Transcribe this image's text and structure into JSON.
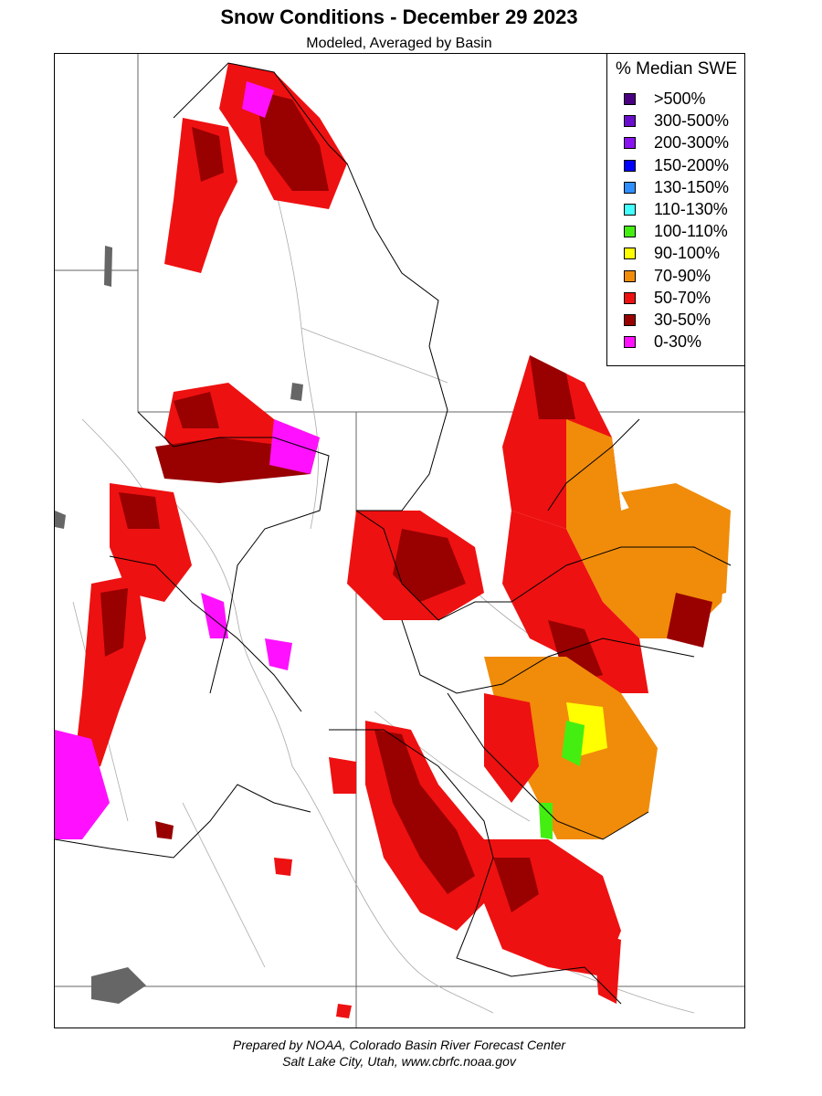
{
  "title": "Snow Conditions - December 29 2023",
  "subtitle": "Modeled, Averaged by Basin",
  "legend": {
    "title": "% Median SWE",
    "items": [
      {
        "label": ">500%",
        "color": "#4b0082"
      },
      {
        "label": "300-500%",
        "color": "#6a0dcc"
      },
      {
        "label": "200-300%",
        "color": "#8a14f0"
      },
      {
        "label": "150-200%",
        "color": "#0000ff"
      },
      {
        "label": "130-150%",
        "color": "#2f8fff"
      },
      {
        "label": "110-130%",
        "color": "#44ffff"
      },
      {
        "label": "100-110%",
        "color": "#44ee11"
      },
      {
        "label": "90-100%",
        "color": "#ffff00"
      },
      {
        "label": "70-90%",
        "color": "#f08c0a"
      },
      {
        "label": "50-70%",
        "color": "#ee1111"
      },
      {
        "label": "30-50%",
        "color": "#990000"
      },
      {
        "label": "0-30%",
        "color": "#ff11ff"
      }
    ]
  },
  "footer": {
    "line1": "Prepared by NOAA, Colorado Basin River Forecast Center",
    "line2": "Salt Lake City, Utah, www.cbrfc.noaa.gov"
  }
}
